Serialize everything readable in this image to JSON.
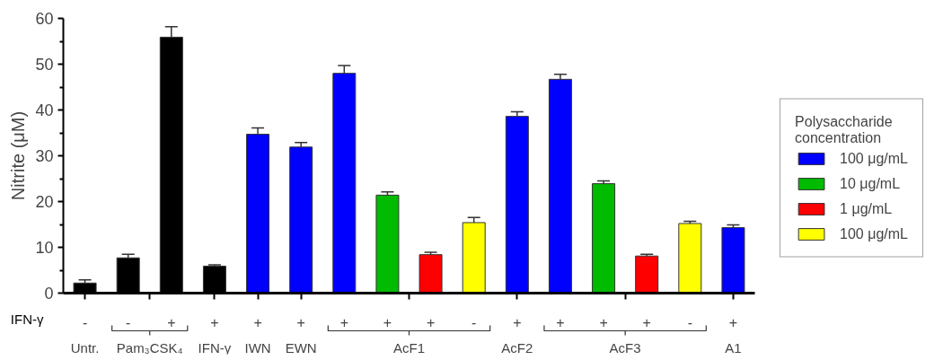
{
  "chart_data": {
    "type": "bar",
    "ylabel": "Nitrite (μM)",
    "legend_title": "Polysaccharide concentration",
    "legend": "right",
    "grid": false,
    "categories": [
      "-",
      "-",
      "+",
      "+",
      "+",
      "+",
      "+",
      "+",
      "+",
      "-",
      "+",
      "+",
      "+",
      "+",
      "-",
      "+"
    ],
    "ylim": [
      0,
      60
    ],
    "yticks": [
      0,
      {
        "value": 5,
        "label": null
      },
      10,
      {
        "value": 15,
        "label": null
      },
      20,
      {
        "value": 25,
        "label": null
      },
      30,
      {
        "value": 35,
        "label": null
      },
      40,
      {
        "value": 45,
        "label": null
      },
      50,
      {
        "value": 55,
        "label": null
      },
      60
    ],
    "series": [
      {
        "color": "#000000",
        "values": [
          2.2,
          7.7,
          55.9,
          5.9,
          null,
          null,
          null,
          null,
          null,
          null,
          null,
          null,
          null,
          null,
          null,
          null
        ],
        "errors": [
          0.7,
          0.8,
          2.3,
          0.3,
          null,
          null,
          null,
          null,
          null,
          null,
          null,
          null,
          null,
          null,
          null,
          null
        ]
      },
      {
        "name": "100 μg/mL",
        "color": "#0000ff",
        "values": [
          null,
          null,
          null,
          null,
          34.7,
          31.9,
          48.0,
          null,
          null,
          null,
          38.6,
          46.7,
          null,
          null,
          null,
          14.3
        ],
        "errors": [
          null,
          null,
          null,
          null,
          1.4,
          1.0,
          1.7,
          null,
          null,
          null,
          1.0,
          1.1,
          null,
          null,
          null,
          0.6
        ]
      },
      {
        "name": "10 μg/mL",
        "color": "#00bb00",
        "values": [
          null,
          null,
          null,
          null,
          null,
          null,
          null,
          21.4,
          null,
          null,
          null,
          null,
          23.9,
          null,
          null,
          null
        ],
        "errors": [
          null,
          null,
          null,
          null,
          null,
          null,
          null,
          0.7,
          null,
          null,
          null,
          null,
          0.6,
          null,
          null,
          null
        ]
      },
      {
        "name": "1 μg/mL",
        "color": "#ff0000",
        "values": [
          null,
          null,
          null,
          null,
          null,
          null,
          null,
          null,
          8.4,
          null,
          null,
          null,
          null,
          8.1,
          null,
          null
        ],
        "errors": [
          null,
          null,
          null,
          null,
          null,
          null,
          null,
          null,
          0.5,
          null,
          null,
          null,
          null,
          0.4,
          null,
          null
        ]
      },
      {
        "name": "100 μg/mL",
        "color": "#ffff00",
        "values": [
          null,
          null,
          null,
          null,
          null,
          null,
          null,
          null,
          null,
          15.4,
          null,
          null,
          null,
          null,
          15.2,
          null
        ],
        "errors": [
          null,
          null,
          null,
          null,
          null,
          null,
          null,
          null,
          null,
          1.1,
          null,
          null,
          null,
          null,
          0.5,
          null
        ]
      }
    ],
    "annotations": [
      "IFN-γ",
      "Untr.",
      "Pam₃CSK₄",
      "IFN-γ",
      "IWN",
      "EWN",
      "AcF1",
      "AcF2",
      "AcF3",
      "A1"
    ]
  }
}
